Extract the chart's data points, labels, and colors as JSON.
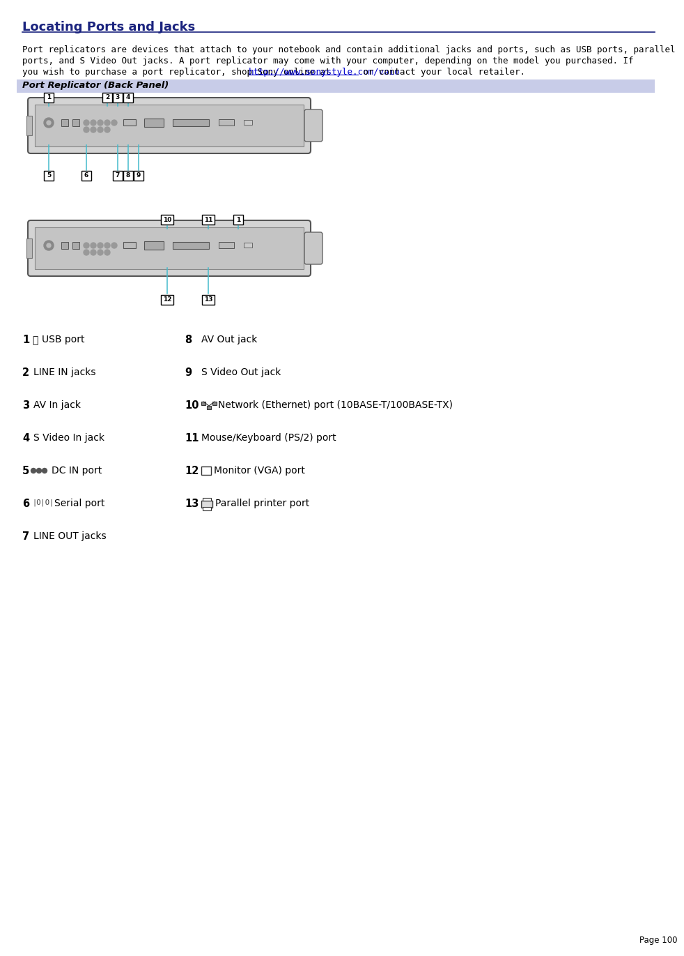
{
  "title": "Locating Ports and Jacks",
  "title_color": "#1a237e",
  "title_underline_color": "#1a237e",
  "background_color": "#ffffff",
  "header_bg_color": "#c8cce8",
  "header_text": "Port Replicator (Back Panel)",
  "link_text": "http://www.sonystyle.com/vaio",
  "link_color": "#0000cc",
  "page_number": "Page 100",
  "intro_line1": "Port replicators are devices that attach to your notebook and contain additional jacks and ports, such as USB ports, parallel",
  "intro_line2": "ports, and S Video Out jacks. A port replicator may come with your computer, depending on the model you purchased. If",
  "intro_line3a": "you wish to purchase a port replicator, shop Sony online at ",
  "intro_line3b": " or contact your local retailer.",
  "items": [
    {
      "num": "1",
      "icon": "usb",
      "left": "USB port",
      "right_num": "8",
      "right_icon": "",
      "right": "AV Out jack"
    },
    {
      "num": "2",
      "icon": "",
      "left": "LINE IN jacks",
      "right_num": "9",
      "right_icon": "",
      "right": "S Video Out jack"
    },
    {
      "num": "3",
      "icon": "",
      "left": "AV In jack",
      "right_num": "10",
      "right_icon": "network",
      "right": "Network (Ethernet) port (10BASE-T/100BASE-TX)"
    },
    {
      "num": "4",
      "icon": "",
      "left": "S Video In jack",
      "right_num": "11",
      "right_icon": "",
      "right": "Mouse/Keyboard (PS/2) port"
    },
    {
      "num": "5",
      "icon": "dc",
      "left": "DC IN port",
      "right_num": "12",
      "right_icon": "monitor",
      "right": "Monitor (VGA) port"
    },
    {
      "num": "6",
      "icon": "serial",
      "left": "Serial port",
      "right_num": "13",
      "right_icon": "printer",
      "right": "Parallel printer port"
    },
    {
      "num": "7",
      "icon": "",
      "left": "LINE OUT jacks",
      "right_num": "",
      "right_icon": "",
      "right": ""
    }
  ]
}
